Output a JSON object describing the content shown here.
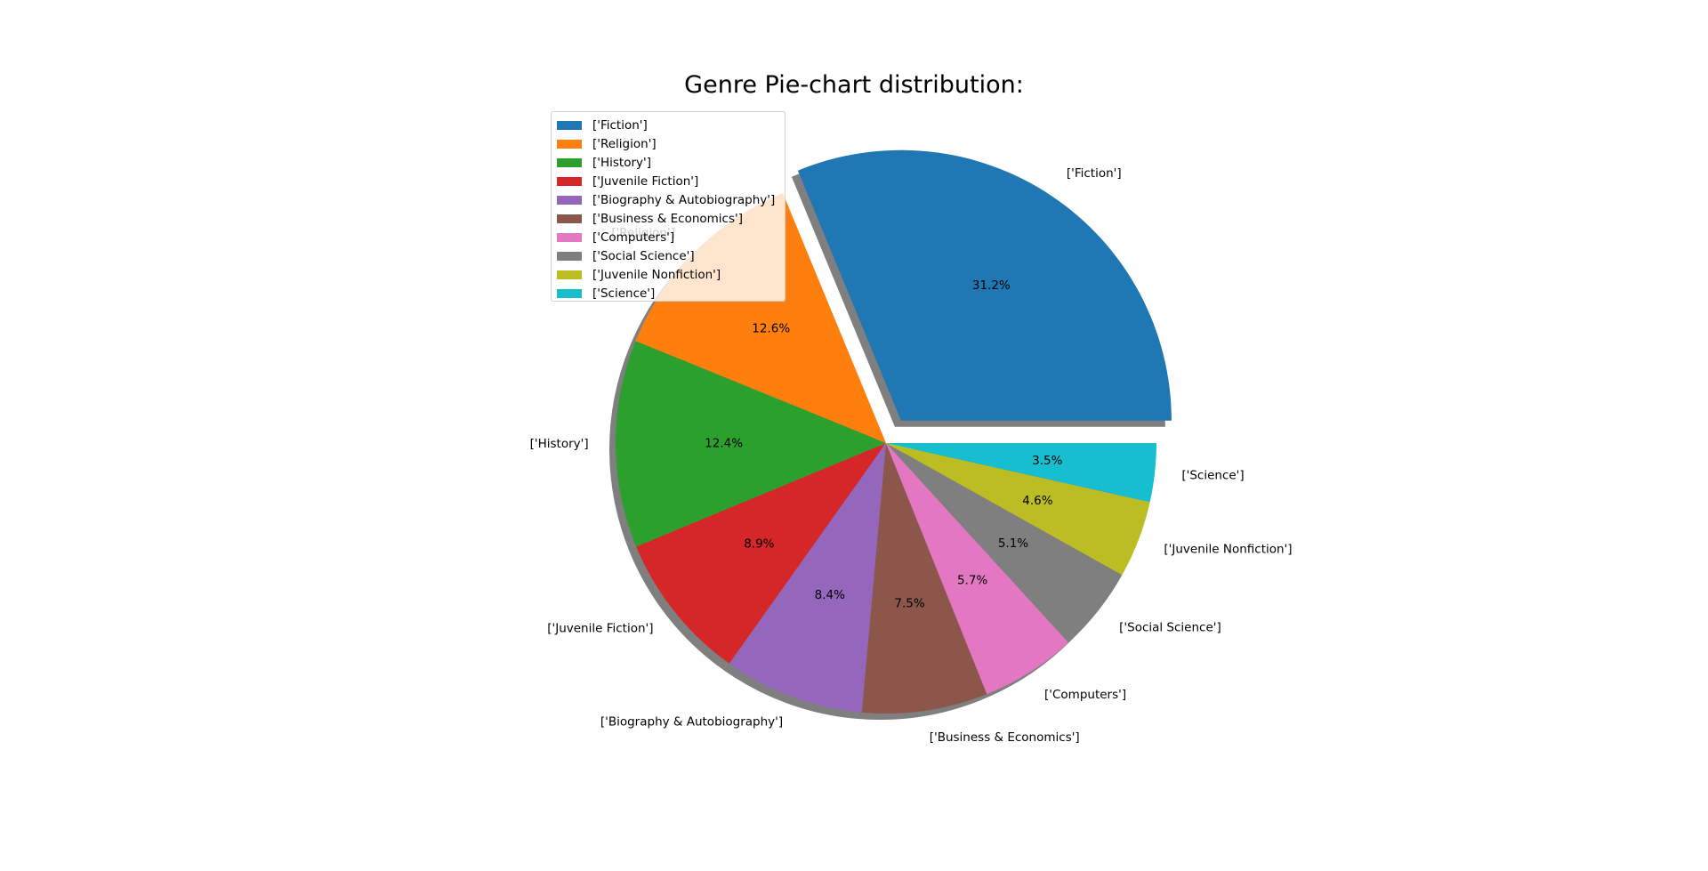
{
  "chart_data": {
    "type": "pie",
    "title": "Genre Pie-chart distribution:",
    "categories": [
      "['Fiction']",
      "['Religion']",
      "['History']",
      "['Juvenile Fiction']",
      "['Biography & Autobiography']",
      "['Business & Economics']",
      "['Computers']",
      "['Social Science']",
      "['Juvenile Nonfiction']",
      "['Science']"
    ],
    "values": [
      31.2,
      12.6,
      12.4,
      8.9,
      8.4,
      7.5,
      5.7,
      5.1,
      4.6,
      3.5
    ],
    "percent_labels": [
      "31.2%",
      "12.6%",
      "12.4%",
      "8.9%",
      "8.4%",
      "7.5%",
      "5.7%",
      "5.1%",
      "4.6%",
      "3.5%"
    ],
    "colors": [
      "#1f77b4",
      "#ff7f0e",
      "#2ca02c",
      "#d62728",
      "#9467bd",
      "#8c564b",
      "#e377c2",
      "#7f7f7f",
      "#bcbd22",
      "#17becf"
    ],
    "exploded": [
      "['Fiction']"
    ],
    "shadow": true,
    "start_angle_deg": 0,
    "direction": "counterclockwise",
    "legend_placement": "upper-left"
  }
}
